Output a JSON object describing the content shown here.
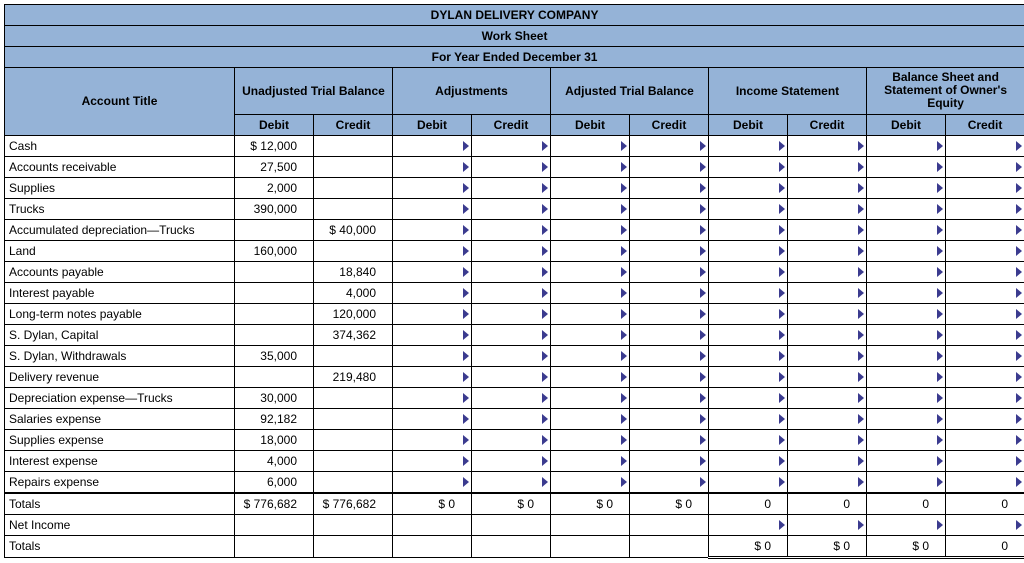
{
  "header": {
    "company": "DYLAN DELIVERY COMPANY",
    "title": "Work Sheet",
    "period": "For Year Ended December 31"
  },
  "colgroups": {
    "account": "Account Title",
    "unadj": "Unadjusted Trial Balance",
    "adj": "Adjustments",
    "adjtb": "Adjusted Trial Balance",
    "is": "Income Statement",
    "bs": "Balance Sheet  and Statement of Owner's Equity",
    "debit": "Debit",
    "credit": "Credit"
  },
  "colors": {
    "header_bg": "#95b3d7",
    "border": "#000000",
    "marker": "#3b3b8f",
    "background": "#ffffff",
    "text": "#000000"
  },
  "rows": [
    {
      "acct": "Cash",
      "unadj_d": "$      12,000"
    },
    {
      "acct": "Accounts receivable",
      "unadj_d": "27,500"
    },
    {
      "acct": "Supplies",
      "unadj_d": "2,000"
    },
    {
      "acct": "Trucks",
      "unadj_d": "390,000"
    },
    {
      "acct": "Accumulated depreciation—Trucks",
      "unadj_c": "$      40,000"
    },
    {
      "acct": "Land",
      "unadj_d": "160,000"
    },
    {
      "acct": "Accounts payable",
      "unadj_c": "18,840"
    },
    {
      "acct": "Interest payable",
      "unadj_c": "4,000"
    },
    {
      "acct": "Long-term notes payable",
      "unadj_c": "120,000"
    },
    {
      "acct": "S. Dylan, Capital",
      "unadj_c": "374,362"
    },
    {
      "acct": "S. Dylan, Withdrawals",
      "unadj_d": "35,000"
    },
    {
      "acct": "Delivery revenue",
      "unadj_c": "219,480"
    },
    {
      "acct": "Depreciation expense—Trucks",
      "unadj_d": "30,000"
    },
    {
      "acct": "Salaries expense",
      "unadj_d": "92,182"
    },
    {
      "acct": "Supplies expense",
      "unadj_d": "18,000"
    },
    {
      "acct": "Interest expense",
      "unadj_d": "4,000"
    },
    {
      "acct": "Repairs expense",
      "unadj_d": "6,000"
    }
  ],
  "totals": {
    "label": "Totals",
    "unadj_d": "$   776,682",
    "unadj_c": "$   776,682",
    "adj_d": "$              0",
    "adj_c": "$              0",
    "adjtb_d": "$              0",
    "adjtb_c": "$              0",
    "is_d": "0",
    "is_c": "0",
    "bs_d": "0",
    "bs_c": "0"
  },
  "netincome": {
    "label": "Net Income"
  },
  "totals2": {
    "label": "Totals",
    "is_d": "$              0",
    "is_c": "$              0",
    "bs_d": "$              0",
    "bs_c": "0"
  }
}
